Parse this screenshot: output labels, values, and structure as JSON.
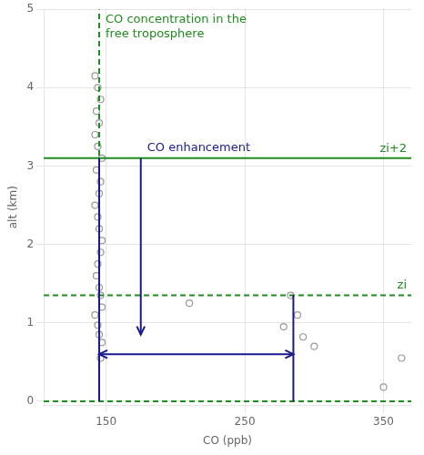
{
  "chart_data": {
    "type": "scatter",
    "xlabel": "CO (ppb)",
    "ylabel": "alt (km)",
    "xlim": [
      105,
      370
    ],
    "ylim": [
      -0.05,
      5.0
    ],
    "xticks": [
      150,
      250,
      350
    ],
    "yticks": [
      0,
      1,
      2,
      3,
      4,
      5
    ],
    "color": "#999999",
    "marker": "open_circle",
    "x": [
      142,
      144,
      146,
      143,
      145,
      142,
      144,
      147,
      143,
      146,
      145,
      142,
      144,
      145,
      147,
      146,
      144,
      143,
      145,
      146,
      147,
      142,
      144,
      145,
      147,
      146,
      210,
      283,
      288,
      278,
      292,
      300,
      350,
      363
    ],
    "values": [
      4.15,
      4.0,
      3.85,
      3.7,
      3.55,
      3.4,
      3.25,
      3.1,
      2.95,
      2.8,
      2.65,
      2.5,
      2.35,
      2.2,
      2.05,
      1.9,
      1.75,
      1.6,
      1.45,
      1.35,
      1.2,
      1.1,
      0.97,
      0.85,
      0.75,
      0.55,
      1.25,
      1.35,
      1.1,
      0.95,
      0.82,
      0.7,
      0.18,
      0.55
    ],
    "lines": [
      {
        "x": [
          145,
          145
        ],
        "y": [
          0.0,
          5.0
        ],
        "color": "#1e8c1e",
        "line_style": "dashed",
        "label": "CO concentration in the\nfree troposphere"
      },
      {
        "y": 3.1,
        "color": "#1e8c1e",
        "line_style": "solid",
        "label": "zi+2"
      },
      {
        "y": 1.35,
        "color": "#1e8c1e",
        "line_style": "dashed",
        "label": "zi"
      },
      {
        "y": 0.0,
        "color": "#1e8c1e",
        "line_style": "dashed"
      },
      {
        "x": [
          145,
          145
        ],
        "y": [
          0.0,
          3.1
        ],
        "color": "#1a1a8c",
        "line_style": "solid"
      },
      {
        "x": [
          175,
          175
        ],
        "y": [
          3.1,
          0.85
        ],
        "color": "#1a1a8c",
        "line_style": "solid",
        "marker": "arrow",
        "label": "CO enhancement"
      },
      {
        "x": [
          285,
          285
        ],
        "y": [
          0.0,
          1.35
        ],
        "color": "#1a1a8c",
        "line_style": "solid"
      },
      {
        "x": [
          145,
          285
        ],
        "y": [
          0.6,
          0.6
        ],
        "color": "#1a1a8c",
        "line_style": "solid",
        "marker": "double_arrow"
      }
    ]
  }
}
